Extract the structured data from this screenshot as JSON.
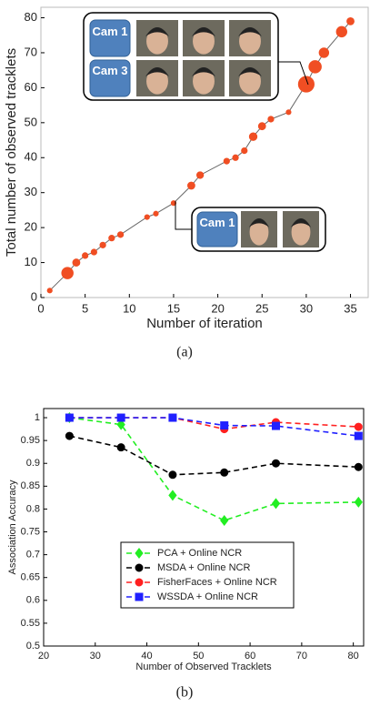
{
  "chart_data": [
    {
      "type": "line",
      "xlabel": "Number of iteration",
      "ylabel": "Total number of observed tracklets",
      "caption": "(a)",
      "x": [
        1,
        3,
        4,
        5,
        6,
        7,
        8,
        9,
        12,
        13,
        15,
        17,
        18,
        21,
        22,
        23,
        24,
        25,
        26,
        28,
        30,
        31,
        32,
        34,
        35
      ],
      "series": [
        {
          "color": "#f04e23",
          "line_color": "#666666",
          "values": [
            2,
            7,
            10,
            12,
            13,
            15,
            17,
            18,
            23,
            24,
            27,
            32,
            35,
            39,
            40,
            42,
            46,
            49,
            51,
            53,
            61,
            66,
            70,
            76,
            79
          ],
          "sizes": [
            1,
            2.4,
            1.5,
            1.2,
            1.2,
            1.2,
            1.2,
            1.2,
            1,
            1,
            1,
            1.5,
            1.4,
            1.2,
            1.2,
            1.2,
            1.6,
            1.5,
            1.2,
            1,
            3.3,
            2.6,
            2,
            2.2,
            1.5
          ]
        }
      ],
      "xlim": [
        0,
        37
      ],
      "ylim": [
        0,
        83
      ],
      "xticks": [
        0,
        5,
        10,
        15,
        20,
        25,
        30,
        35
      ],
      "yticks": [
        0,
        10,
        20,
        30,
        40,
        50,
        60,
        70,
        80
      ],
      "annotations": [
        "Cam 1",
        "Cam 3",
        "Cam 1"
      ]
    },
    {
      "type": "line",
      "xlabel": "Number of Observed Tracklets",
      "ylabel": "Association Accuracy",
      "caption": "(b)",
      "line_style": "dashed",
      "legend": "lower center",
      "x": [
        25,
        35,
        45,
        55,
        65,
        81
      ],
      "series": [
        {
          "name": "PCA + Online NCR",
          "color": "#22ee22",
          "marker": "diamond",
          "values": [
            1.0,
            0.985,
            0.83,
            0.775,
            0.812,
            0.815
          ]
        },
        {
          "name": "MSDA + Online NCR",
          "color": "#000000",
          "marker": "circle",
          "values": [
            0.96,
            0.935,
            0.875,
            0.88,
            0.9,
            0.892
          ]
        },
        {
          "name": "FisherFaces + Online NCR",
          "color": "#ff2020",
          "marker": "circle",
          "values": [
            1.0,
            1.0,
            1.0,
            0.975,
            0.99,
            0.98
          ]
        },
        {
          "name": "WSSDA + Online NCR",
          "color": "#2020ff",
          "marker": "square",
          "values": [
            1.0,
            1.0,
            1.0,
            0.983,
            0.982,
            0.96
          ]
        }
      ],
      "xlim": [
        20,
        82
      ],
      "ylim": [
        0.5,
        1.02
      ],
      "xticks": [
        20,
        30,
        40,
        50,
        60,
        70,
        80
      ],
      "yticks": [
        0.5,
        0.55,
        0.6,
        0.65,
        0.7,
        0.75,
        0.8,
        0.85,
        0.9,
        0.95,
        1
      ]
    }
  ]
}
